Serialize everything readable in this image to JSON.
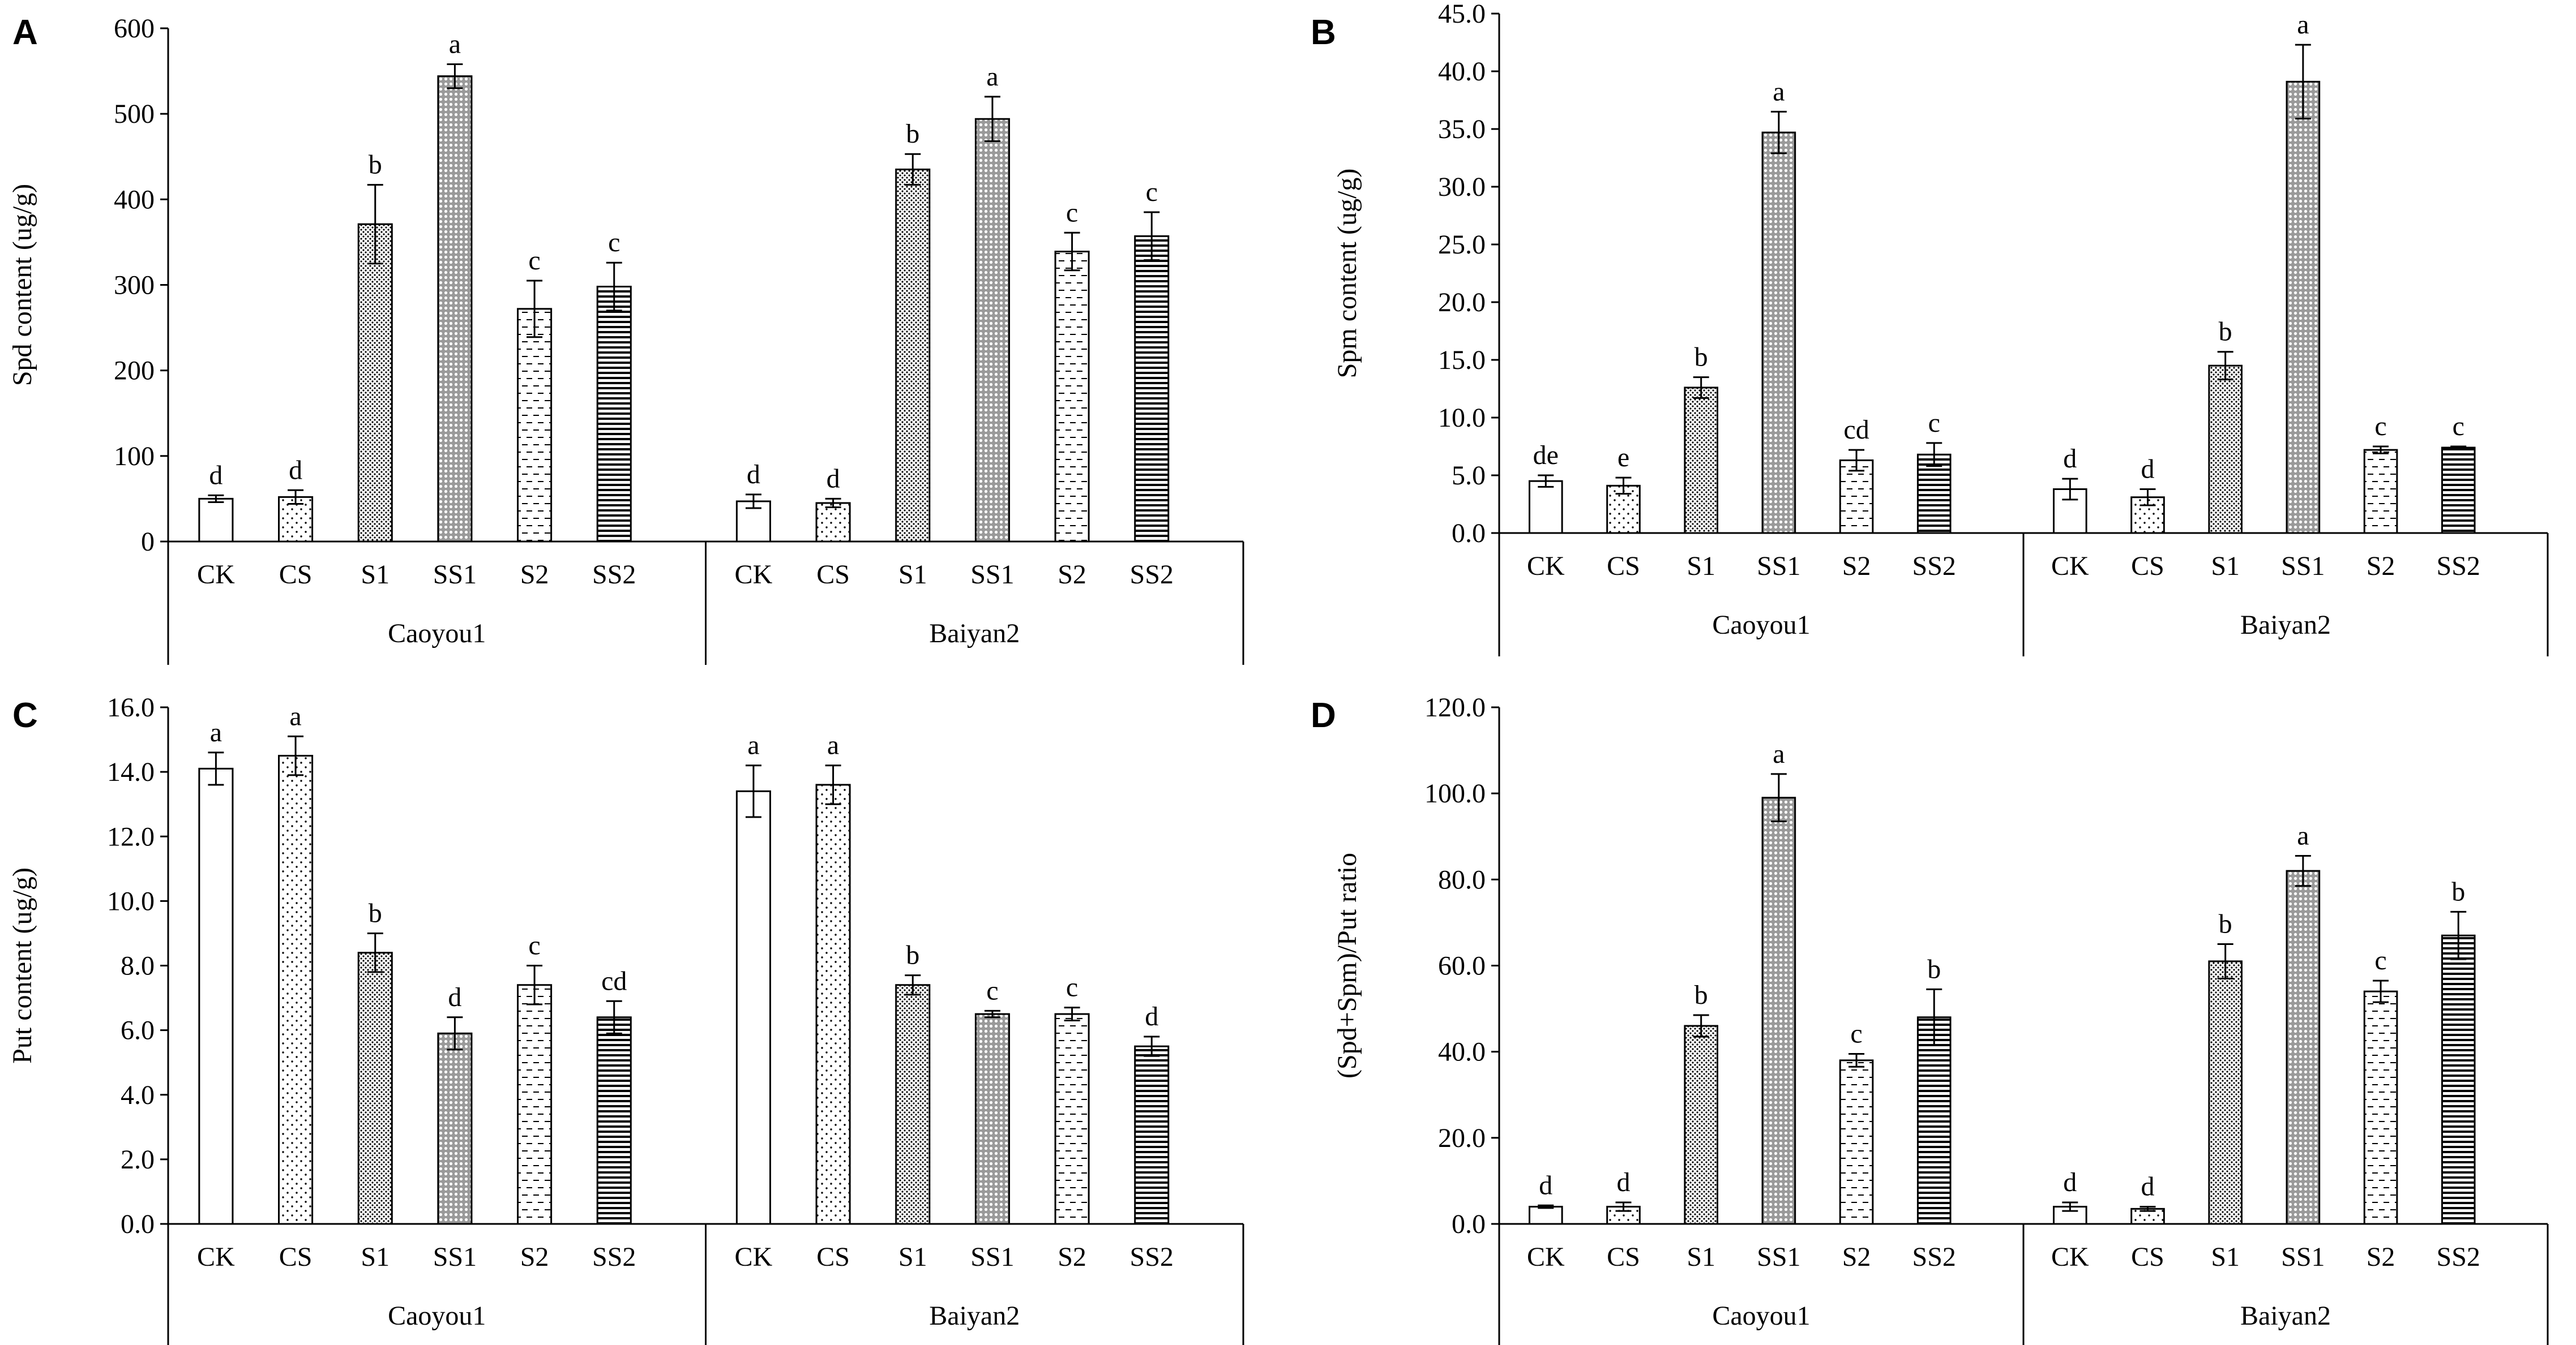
{
  "chart_data": [
    {
      "panel": "A",
      "type": "bar",
      "ylabel": "Spd content (ug/g)",
      "ylim": [
        0,
        600
      ],
      "yticks": [
        0,
        100,
        200,
        300,
        400,
        500,
        600
      ],
      "ytick_labels": [
        "0",
        "100",
        "200",
        "300",
        "400",
        "500",
        "600"
      ],
      "groups": [
        "Caoyou1",
        "Baiyan2"
      ],
      "categories": [
        "CK",
        "CS",
        "S1",
        "SS1",
        "S2",
        "SS2"
      ],
      "values": [
        [
          50,
          52,
          371,
          544,
          272,
          298
        ],
        [
          47,
          45,
          435,
          494,
          339,
          357
        ]
      ],
      "errors": [
        [
          4,
          8,
          46,
          14,
          33,
          28
        ],
        [
          8,
          5,
          18,
          26,
          22,
          28
        ]
      ],
      "letters": [
        [
          "d",
          "d",
          "b",
          "a",
          "c",
          "c"
        ],
        [
          "d",
          "d",
          "b",
          "a",
          "c",
          "c"
        ]
      ]
    },
    {
      "panel": "B",
      "type": "bar",
      "ylabel": "Spm content (ug/g)",
      "ylim": [
        0,
        45
      ],
      "yticks": [
        0,
        5,
        10,
        15,
        20,
        25,
        30,
        35,
        40,
        45
      ],
      "ytick_labels": [
        "0.0",
        "5.0",
        "10.0",
        "15.0",
        "20.0",
        "25.0",
        "30.0",
        "35.0",
        "40.0",
        "45.0"
      ],
      "groups": [
        "Caoyou1",
        "Baiyan2"
      ],
      "categories": [
        "CK",
        "CS",
        "S1",
        "SS1",
        "S2",
        "SS2"
      ],
      "values": [
        [
          4.5,
          4.1,
          12.6,
          34.7,
          6.3,
          6.8
        ],
        [
          3.8,
          3.1,
          14.5,
          39.1,
          7.2,
          7.4
        ]
      ],
      "errors": [
        [
          0.5,
          0.7,
          0.9,
          1.8,
          0.9,
          1.0
        ],
        [
          0.9,
          0.7,
          1.2,
          3.2,
          0.3,
          0.1
        ]
      ],
      "letters": [
        [
          "de",
          "e",
          "b",
          "a",
          "cd",
          "c"
        ],
        [
          "d",
          "d",
          "b",
          "a",
          "c",
          "c"
        ]
      ]
    },
    {
      "panel": "C",
      "type": "bar",
      "ylabel": "Put content (ug/g)",
      "ylim": [
        0,
        16
      ],
      "yticks": [
        0,
        2,
        4,
        6,
        8,
        10,
        12,
        14,
        16
      ],
      "ytick_labels": [
        "0.0",
        "2.0",
        "4.0",
        "6.0",
        "8.0",
        "10.0",
        "12.0",
        "14.0",
        "16.0"
      ],
      "groups": [
        "Caoyou1",
        "Baiyan2"
      ],
      "categories": [
        "CK",
        "CS",
        "S1",
        "SS1",
        "S2",
        "SS2"
      ],
      "values": [
        [
          14.1,
          14.5,
          8.4,
          5.9,
          7.4,
          6.4
        ],
        [
          13.4,
          13.6,
          7.4,
          6.5,
          6.5,
          5.5
        ]
      ],
      "errors": [
        [
          0.5,
          0.6,
          0.6,
          0.5,
          0.6,
          0.5
        ],
        [
          0.8,
          0.6,
          0.3,
          0.1,
          0.2,
          0.3
        ]
      ],
      "letters": [
        [
          "a",
          "a",
          "b",
          "d",
          "c",
          "cd"
        ],
        [
          "a",
          "a",
          "b",
          "c",
          "c",
          "d"
        ]
      ]
    },
    {
      "panel": "D",
      "type": "bar",
      "ylabel": "(Spd+Spm)/Put ratio",
      "ylim": [
        0,
        120
      ],
      "yticks": [
        0,
        20,
        40,
        60,
        80,
        100,
        120
      ],
      "ytick_labels": [
        "0.0",
        "20.0",
        "40.0",
        "60.0",
        "80.0",
        "100.0",
        "120.0"
      ],
      "groups": [
        "Caoyou1",
        "Baiyan2"
      ],
      "categories": [
        "CK",
        "CS",
        "S1",
        "SS1",
        "S2",
        "SS2"
      ],
      "values": [
        [
          4,
          4,
          46,
          99,
          38,
          48
        ],
        [
          4,
          3.5,
          61,
          82,
          54,
          67
        ]
      ],
      "errors": [
        [
          0.3,
          1.0,
          2.5,
          5.5,
          1.5,
          6.5
        ],
        [
          1.0,
          0.5,
          4.0,
          3.5,
          2.5,
          5.5
        ]
      ],
      "letters": [
        [
          "d",
          "d",
          "b",
          "a",
          "c",
          "b"
        ],
        [
          "d",
          "d",
          "b",
          "a",
          "c",
          "b"
        ]
      ]
    }
  ]
}
